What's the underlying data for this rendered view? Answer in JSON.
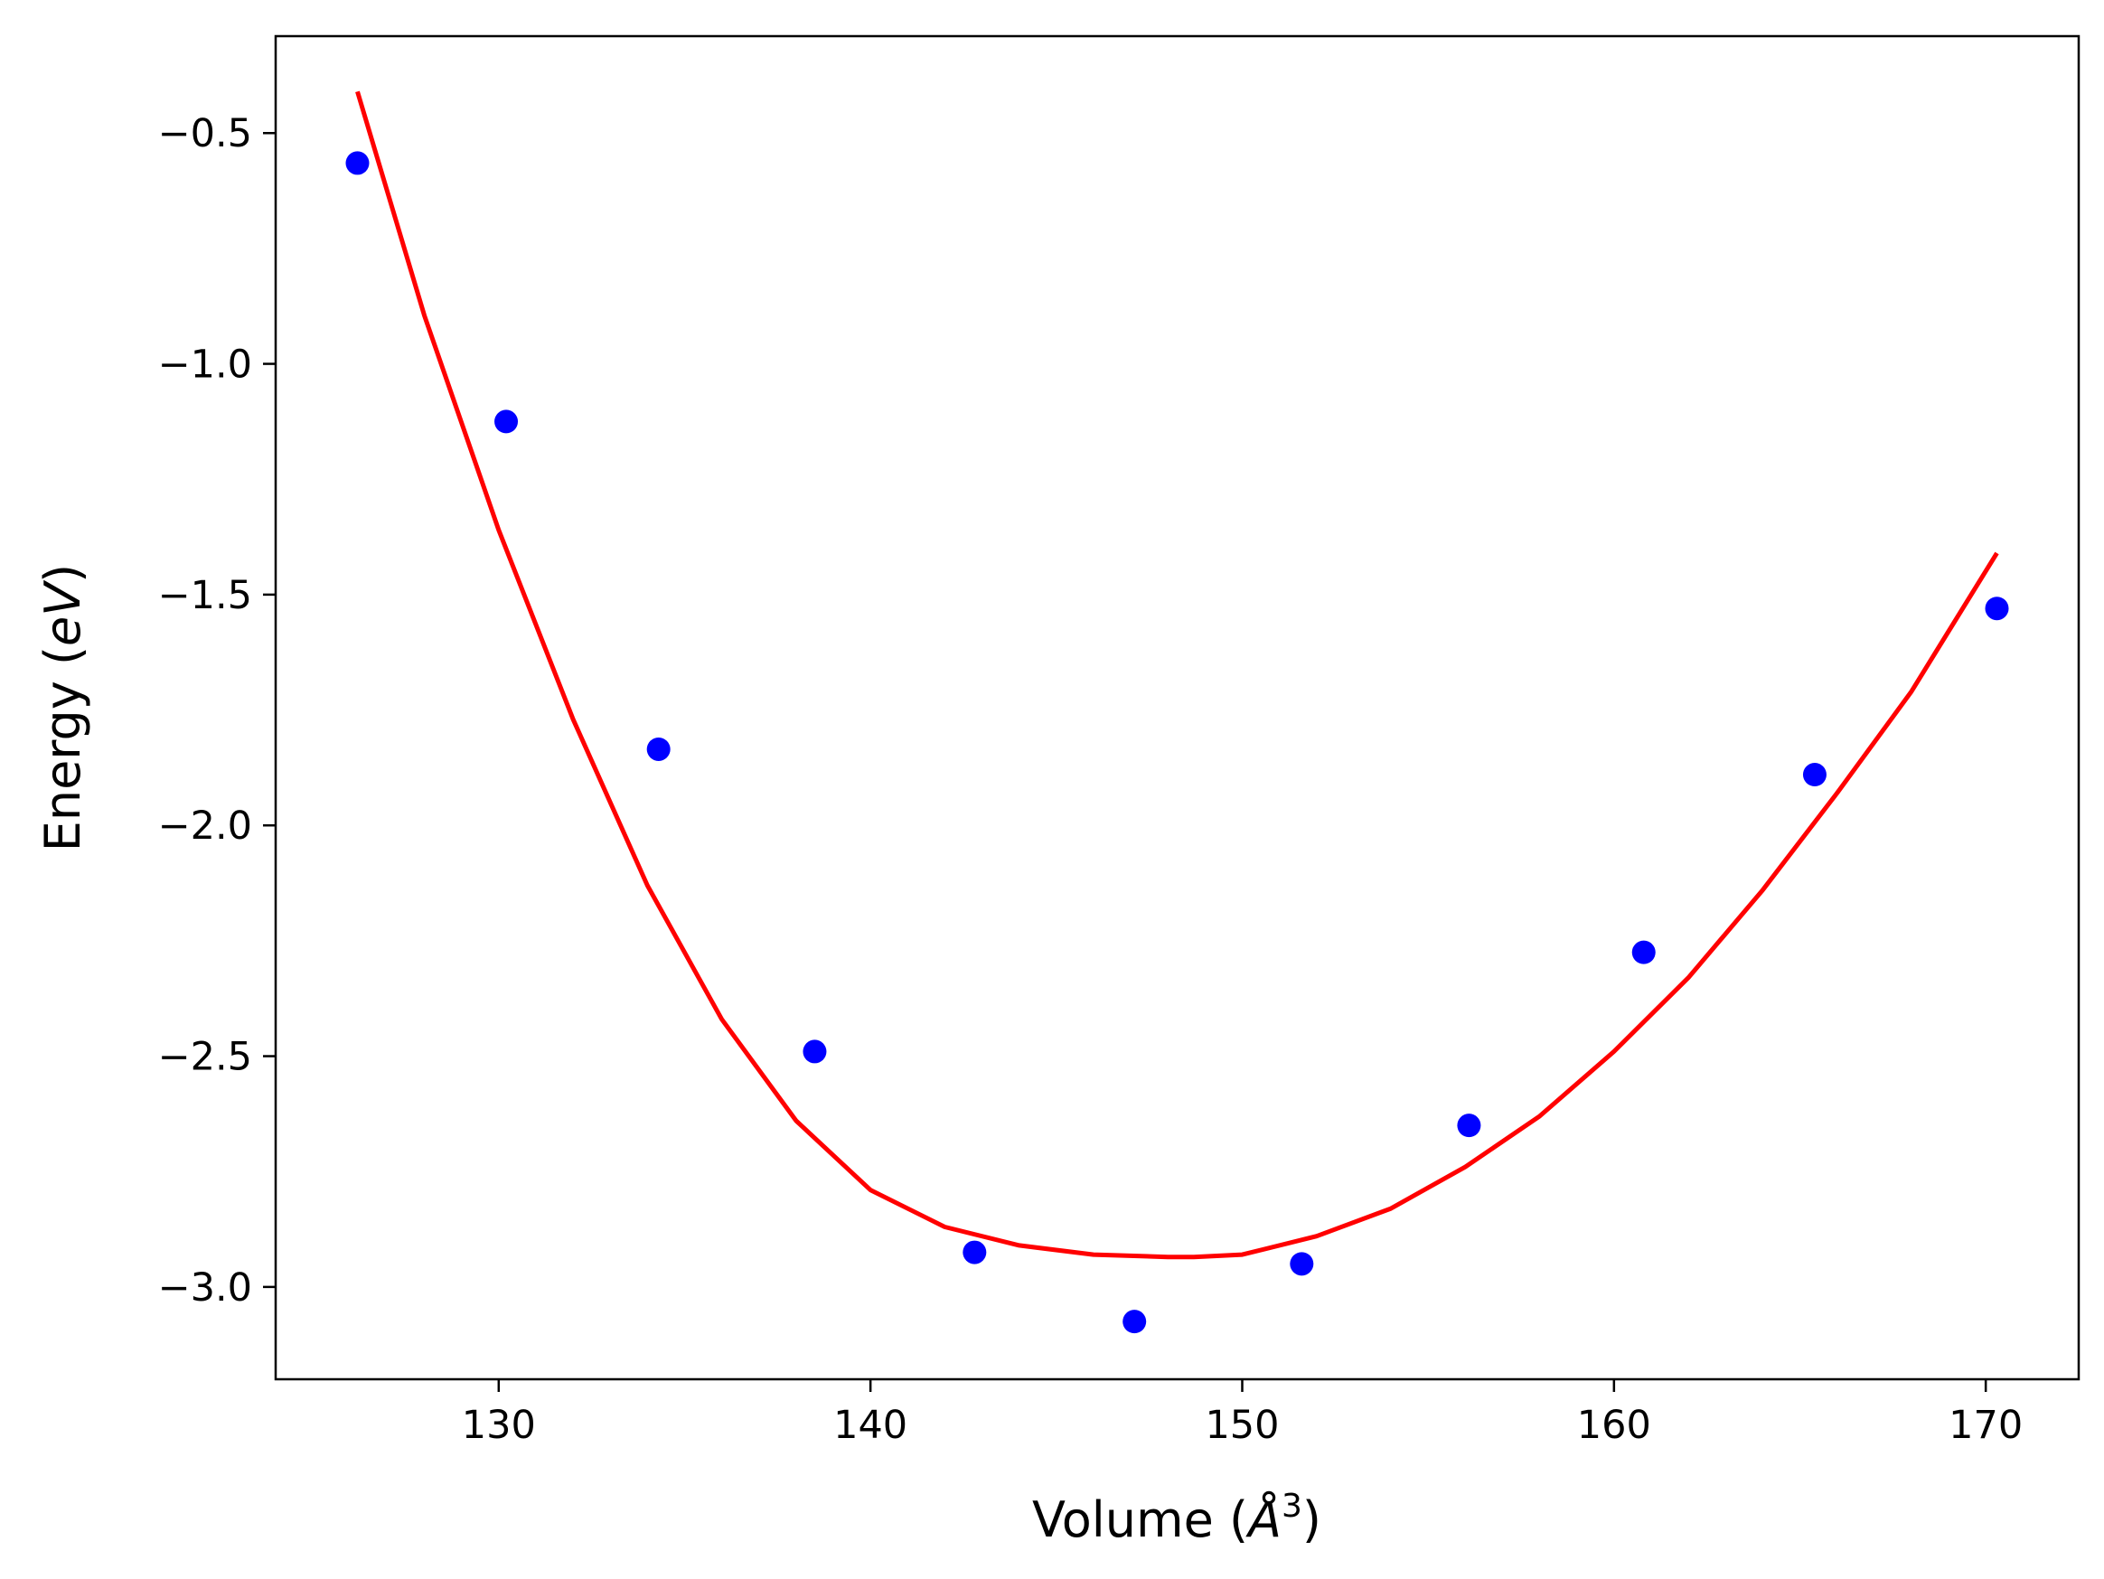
{
  "chart_data": {
    "type": "scatter",
    "title": "",
    "xlabel": {
      "prefix": "Volume (",
      "var": "Å",
      "sup": "3",
      "suffix": ")"
    },
    "ylabel": {
      "prefix": "Energy (",
      "var": "eV",
      "suffix": ")"
    },
    "xlim": [
      124.0,
      172.5
    ],
    "ylim": [
      -3.2,
      -0.29
    ],
    "xticks": [
      130,
      140,
      150,
      160,
      170
    ],
    "yticks": [
      -0.5,
      -1.0,
      -1.5,
      -2.0,
      -2.5,
      -3.0
    ],
    "xtick_labels": [
      "130",
      "140",
      "150",
      "160",
      "170"
    ],
    "ytick_labels": [
      "−0.5",
      "−1.0",
      "−1.5",
      "−2.0",
      "−2.5",
      "−3.0"
    ],
    "grid": false,
    "series": [
      {
        "kind": "scatter",
        "color": "#0000ff",
        "x": [
          126.2,
          130.2,
          134.3,
          138.5,
          142.8,
          147.1,
          151.6,
          156.1,
          160.8,
          165.4,
          170.3
        ],
        "y": [
          -0.565,
          -1.125,
          -1.835,
          -2.49,
          -2.925,
          -3.075,
          -2.95,
          -2.65,
          -2.275,
          -1.89,
          -1.53
        ]
      },
      {
        "kind": "line",
        "color": "#ff0000",
        "x": [
          126.2,
          128.0,
          130.0,
          132.0,
          134.0,
          136.0,
          138.0,
          140.0,
          142.0,
          144.0,
          146.0,
          148.0,
          148.7,
          150.0,
          152.0,
          154.0,
          156.0,
          158.0,
          160.0,
          162.0,
          164.0,
          166.0,
          168.0,
          170.3
        ],
        "y": [
          -0.41,
          -0.895,
          -1.36,
          -1.77,
          -2.13,
          -2.42,
          -2.64,
          -2.79,
          -2.87,
          -2.91,
          -2.93,
          -2.935,
          -2.935,
          -2.93,
          -2.89,
          -2.83,
          -2.74,
          -2.63,
          -2.49,
          -2.33,
          -2.14,
          -1.93,
          -1.71,
          -1.41
        ]
      }
    ]
  }
}
